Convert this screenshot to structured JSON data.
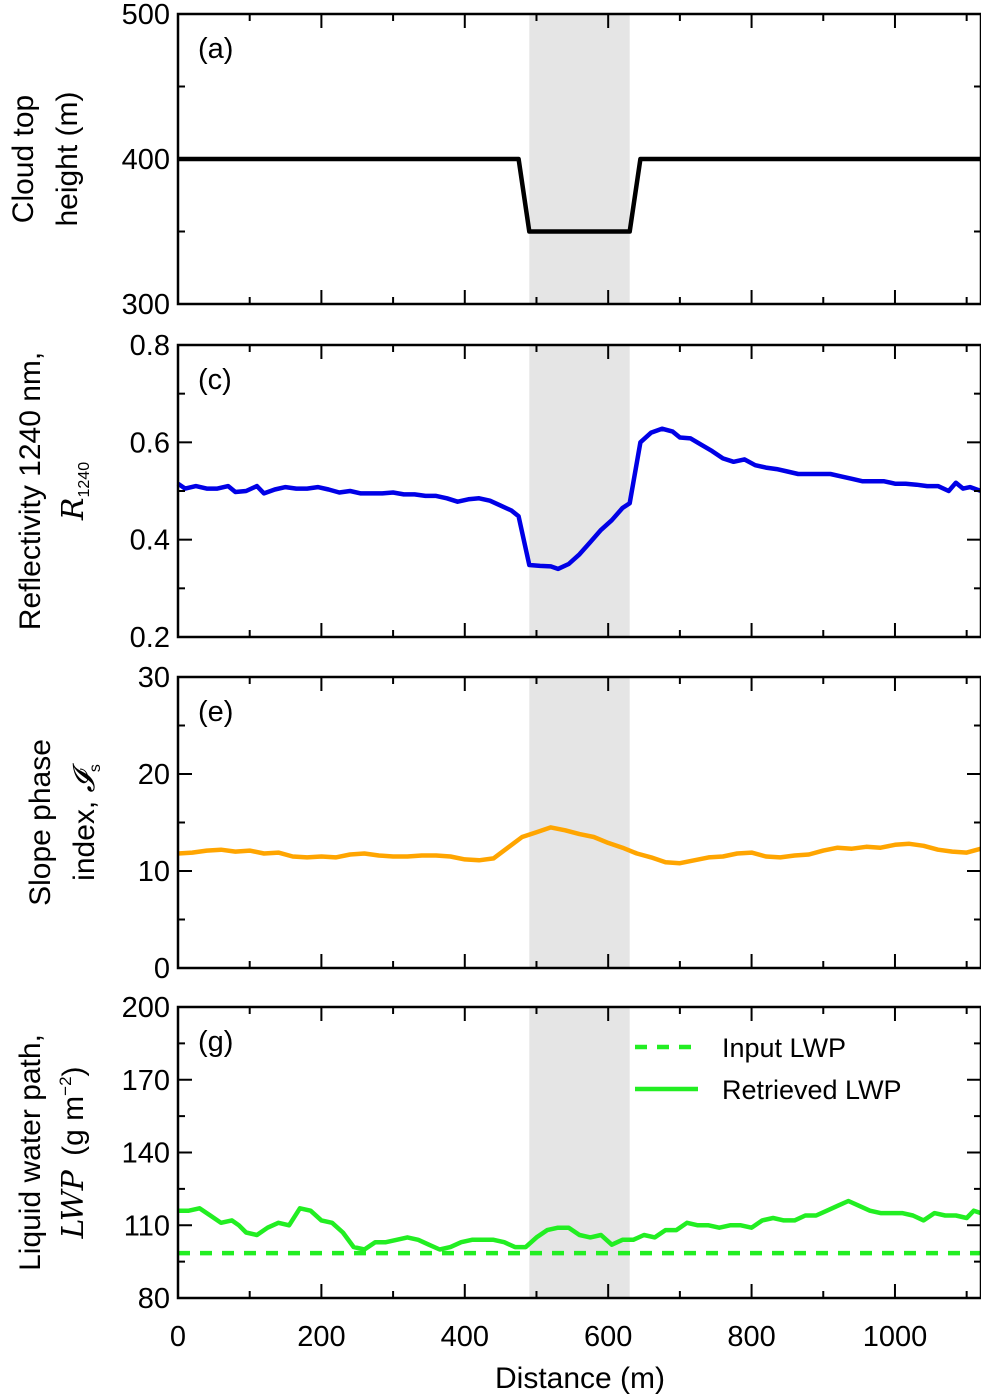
{
  "shade": {
    "x0": 490,
    "x1": 630,
    "color": "#e5e5e5"
  },
  "xaxis": {
    "label": "Distance (m)",
    "lim": [
      0,
      1120
    ],
    "ticks": [
      0,
      200,
      400,
      600,
      800,
      1000
    ],
    "tick_labels": [
      "0",
      "200",
      "400",
      "600",
      "800",
      "1000"
    ]
  },
  "chart_data": [
    {
      "id": "a",
      "type": "line",
      "tag": "(a)",
      "ylabel_line1": "Cloud top",
      "ylabel_line2": "height (m)",
      "ylim": [
        300,
        500
      ],
      "yticks": [
        300,
        400,
        500
      ],
      "ytick_labels": [
        "300",
        "400",
        "500"
      ],
      "series": [
        {
          "color": "#000000",
          "dash": "",
          "x": [
            0,
            475,
            490,
            630,
            645,
            1120
          ],
          "y": [
            400,
            400,
            350,
            350,
            400,
            400
          ]
        }
      ]
    },
    {
      "id": "c",
      "type": "line",
      "tag": "(c)",
      "ylabel_line1": "Reflectivity 1240 nm,",
      "ylabel_sym": "R",
      "ylabel_sub": "1240",
      "ylim": [
        0.2,
        0.8
      ],
      "yticks": [
        0.2,
        0.4,
        0.6,
        0.8
      ],
      "ytick_labels": [
        "0.2",
        "0.4",
        "0.6",
        "0.8"
      ],
      "series": [
        {
          "color": "#0000e6",
          "dash": "",
          "x": [
            0,
            10,
            25,
            40,
            55,
            70,
            80,
            95,
            110,
            120,
            135,
            150,
            165,
            180,
            195,
            210,
            225,
            240,
            255,
            270,
            285,
            300,
            315,
            330,
            345,
            360,
            375,
            390,
            405,
            420,
            435,
            450,
            465,
            475,
            490,
            505,
            520,
            530,
            545,
            560,
            575,
            590,
            605,
            620,
            630,
            645,
            660,
            675,
            690,
            700,
            715,
            730,
            745,
            760,
            775,
            790,
            805,
            820,
            835,
            850,
            865,
            880,
            895,
            910,
            925,
            940,
            955,
            970,
            985,
            1000,
            1015,
            1030,
            1045,
            1060,
            1075,
            1085,
            1095,
            1105,
            1120
          ],
          "y": [
            0.515,
            0.505,
            0.51,
            0.505,
            0.505,
            0.51,
            0.498,
            0.5,
            0.51,
            0.495,
            0.503,
            0.508,
            0.505,
            0.505,
            0.508,
            0.503,
            0.497,
            0.5,
            0.495,
            0.495,
            0.495,
            0.497,
            0.493,
            0.493,
            0.49,
            0.49,
            0.485,
            0.478,
            0.483,
            0.485,
            0.48,
            0.47,
            0.46,
            0.448,
            0.348,
            0.346,
            0.345,
            0.34,
            0.35,
            0.37,
            0.395,
            0.42,
            0.44,
            0.465,
            0.475,
            0.6,
            0.62,
            0.628,
            0.622,
            0.61,
            0.608,
            0.595,
            0.582,
            0.567,
            0.56,
            0.565,
            0.553,
            0.548,
            0.545,
            0.54,
            0.535,
            0.535,
            0.535,
            0.535,
            0.53,
            0.525,
            0.52,
            0.52,
            0.52,
            0.515,
            0.515,
            0.513,
            0.51,
            0.51,
            0.5,
            0.517,
            0.505,
            0.508,
            0.5
          ]
        }
      ]
    },
    {
      "id": "e",
      "type": "line",
      "tag": "(e)",
      "ylabel_line1": "Slope phase",
      "ylabel_line2": "index,",
      "ylabel_sym": "𝓘",
      "ylabel_sub": "s",
      "ylim": [
        0,
        30
      ],
      "yticks": [
        0,
        10,
        20,
        30
      ],
      "ytick_labels": [
        "0",
        "10",
        "20",
        "30"
      ],
      "series": [
        {
          "color": "#ffa500",
          "dash": "",
          "x": [
            0,
            20,
            40,
            60,
            80,
            100,
            120,
            140,
            160,
            180,
            200,
            220,
            240,
            260,
            280,
            300,
            320,
            340,
            360,
            380,
            400,
            420,
            440,
            460,
            480,
            500,
            520,
            540,
            560,
            580,
            600,
            620,
            640,
            660,
            680,
            700,
            720,
            740,
            760,
            780,
            800,
            820,
            840,
            860,
            880,
            900,
            920,
            940,
            960,
            980,
            1000,
            1020,
            1040,
            1060,
            1080,
            1100,
            1120
          ],
          "y": [
            11.8,
            11.9,
            12.1,
            12.2,
            12.0,
            12.1,
            11.8,
            11.9,
            11.5,
            11.4,
            11.5,
            11.4,
            11.7,
            11.8,
            11.6,
            11.5,
            11.5,
            11.6,
            11.6,
            11.5,
            11.2,
            11.1,
            11.3,
            12.4,
            13.5,
            14.0,
            14.5,
            14.2,
            13.8,
            13.5,
            12.9,
            12.4,
            11.8,
            11.4,
            10.9,
            10.8,
            11.1,
            11.4,
            11.5,
            11.8,
            11.9,
            11.5,
            11.4,
            11.6,
            11.7,
            12.1,
            12.4,
            12.3,
            12.5,
            12.4,
            12.7,
            12.8,
            12.6,
            12.2,
            12.0,
            11.9,
            12.3
          ]
        }
      ]
    },
    {
      "id": "g",
      "type": "line",
      "tag": "(g)",
      "ylabel_line1": "Liquid water path,",
      "ylabel_sym": "LWP",
      "ylabel_unit": "(g m",
      "ylabel_sup": "−2",
      "ylabel_close": ")",
      "ylim": [
        80,
        200
      ],
      "yticks": [
        80,
        110,
        140,
        170,
        200
      ],
      "ytick_labels": [
        "80",
        "110",
        "140",
        "170",
        "200"
      ],
      "legend": {
        "position": "top-right",
        "entries": [
          {
            "label": "Input LWP",
            "color": "#22ee22",
            "dash": "12 10"
          },
          {
            "label": "Retrieved LWP",
            "color": "#22ee22",
            "dash": ""
          }
        ]
      },
      "series": [
        {
          "color": "#22ee22",
          "dash": "12 10",
          "x": [
            0,
            1120
          ],
          "y": [
            98.5,
            98.5
          ]
        },
        {
          "color": "#22ee22",
          "dash": "",
          "x": [
            0,
            15,
            30,
            45,
            60,
            75,
            85,
            95,
            110,
            125,
            140,
            155,
            170,
            185,
            200,
            215,
            230,
            245,
            260,
            275,
            290,
            305,
            320,
            335,
            350,
            365,
            380,
            395,
            410,
            425,
            440,
            455,
            470,
            485,
            500,
            515,
            530,
            545,
            560,
            575,
            590,
            605,
            620,
            635,
            650,
            665,
            680,
            695,
            710,
            725,
            740,
            755,
            770,
            785,
            800,
            815,
            830,
            845,
            860,
            875,
            890,
            905,
            920,
            935,
            950,
            965,
            980,
            995,
            1010,
            1025,
            1040,
            1055,
            1070,
            1085,
            1100,
            1110,
            1120
          ],
          "y": [
            116,
            116,
            117,
            114,
            111,
            112,
            110,
            107,
            106,
            109,
            111,
            110,
            117,
            116,
            112,
            111,
            107,
            101,
            100,
            103,
            103,
            104,
            105,
            104,
            102,
            100,
            101,
            103,
            104,
            104,
            104,
            103,
            101,
            101,
            105,
            108,
            109,
            109,
            106,
            105,
            106,
            102,
            104,
            104,
            106,
            105,
            108,
            108,
            111,
            110,
            110,
            109,
            110,
            110,
            109,
            112,
            113,
            112,
            112,
            114,
            114,
            116,
            118,
            120,
            118,
            116,
            115,
            115,
            115,
            114,
            112,
            115,
            114,
            114,
            113,
            116,
            115
          ]
        }
      ]
    }
  ]
}
